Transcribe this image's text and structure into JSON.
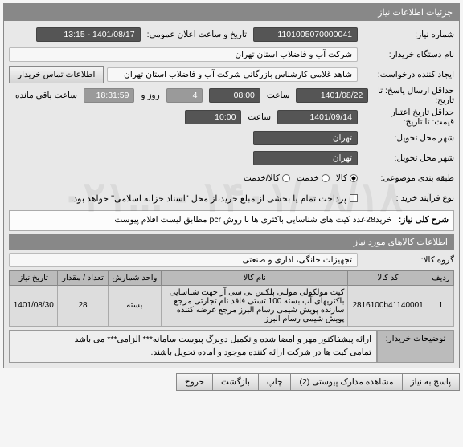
{
  "watermark": "۱۴۰۱/۰۸/۱۸ - ...۰۲۱",
  "panel": {
    "title": "جزئیات اطلاعات نیاز",
    "itemsTitle": "اطلاعات کالاهای مورد نیاز"
  },
  "labels": {
    "reqNo": "شماره نیاز:",
    "announce": "تاریخ و ساعت اعلان عمومی:",
    "buyer": "نام دستگاه خریدار:",
    "creator": "ایجاد کننده درخواست:",
    "deadline": "حداقل ارسال پاسخ: تا\nتاریخ:",
    "validity": "حداقل تاریخ اعتبار\nقیمت: تا تاریخ:",
    "hour": "ساعت",
    "dayAnd": "روز و",
    "remain": "ساعت باقی مانده",
    "deliveryCity": "شهر محل تحویل:",
    "shipCity": "شهر محل تحویل:",
    "category": "طبقه بندی موضوعی:",
    "process": "نوع فرآیند خرید :",
    "needDesc": "شرح کلی نیاز:",
    "group": "گروه کالا:",
    "buyerNotes": "توضیحات خریدار:"
  },
  "fields": {
    "reqNo": "1101005070000041",
    "announce": "1401/08/17 - 13:15",
    "buyer": "شرکت آب و فاضلاب استان تهران",
    "creator": "شاهد غلامی کارشناس بازرگانی شرکت آب و فاضلاب استان تهران",
    "deadlineDate": "1401/08/22",
    "deadlineTime": "08:00",
    "daysLeft": "4",
    "timeLeft": "18:31:59",
    "validityDate": "1401/09/14",
    "validityTime": "10:00",
    "deliveryCity": "تهران",
    "shipCity": "تهران",
    "processText": "پرداخت تمام یا بخشی از مبلغ خرید،از محل \"اسناد خزانه اسلامی\" خواهد بود.",
    "needDesc": "خرید28عدد  کیت های شناسایی باکتری ها با روش pcr مطابق لیست اقلام پیوست",
    "group": "تجهیزات خانگی، اداری و صنعتی",
    "buyerNotes": "ارائه پیشفاکتور مهر و امضا شده و تکمیل دوبرگ پیوست سامانه*** الزامی*** می باشد\nتمامی کیت ها در شرکت ارائه کننده موجود و آماده تحویل باشند."
  },
  "radios": {
    "goods": "کالا",
    "service": "خدمت",
    "both": "کالا/خدمت"
  },
  "table": {
    "headers": [
      "ردیف",
      "کد کالا",
      "نام کالا",
      "واحد شمارش",
      "تعداد / مقدار",
      "تاریخ نیاز"
    ],
    "rows": [
      {
        "idx": "1",
        "code": "2816100b41140001",
        "name": "کیت مولکولی مولتی پلکس پی سی آر جهت شناسایی باکتریهای آب بسته 100 تستی فاقد نام تجارتی مرجع سازنده پویش شیمی رسام البرز مرجع عرضه کننده پویش شیمی رسام البرز",
        "unit": "بسته",
        "qty": "28",
        "date": "1401/08/30"
      }
    ]
  },
  "buttons": {
    "contact": "اطلاعات تماس خریدار",
    "respond": "پاسخ به نیاز",
    "attachments": "مشاهده مدارک پیوستی (2)",
    "print": "چاپ",
    "back": "بازگشت",
    "exit": "خروج"
  }
}
